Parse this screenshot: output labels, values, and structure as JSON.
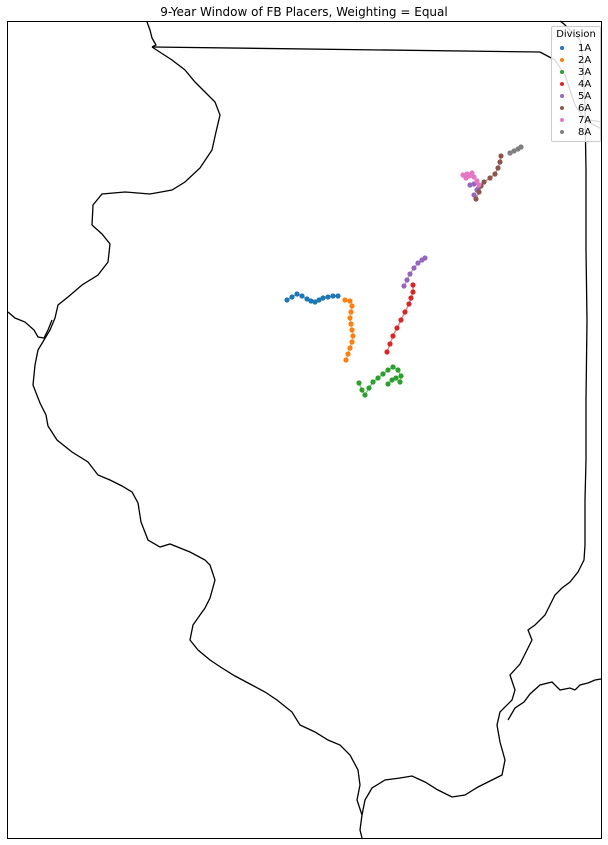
{
  "title": "9-Year Window of FB Placers, Weighting = Equal",
  "legend": {
    "title": "Division",
    "items": [
      {
        "label": "1A",
        "color": "#1f77b4"
      },
      {
        "label": "2A",
        "color": "#ff7f0e"
      },
      {
        "label": "3A",
        "color": "#2ca02c"
      },
      {
        "label": "4A",
        "color": "#d62728"
      },
      {
        "label": "5A",
        "color": "#9467bd"
      },
      {
        "label": "6A",
        "color": "#8c564b"
      },
      {
        "label": "7A",
        "color": "#e377c2"
      },
      {
        "label": "8A",
        "color": "#7f7f7f"
      }
    ]
  },
  "chart_data": {
    "type": "scatter",
    "title": "9-Year Window of FB Placers, Weighting = Equal",
    "legend_title": "Division",
    "legend_placement": "top-right",
    "grid": false,
    "series": [
      {
        "name": "1A",
        "color": "#1f77b4"
      },
      {
        "name": "2A",
        "color": "#ff7f0e"
      },
      {
        "name": "3A",
        "color": "#2ca02c"
      },
      {
        "name": "4A",
        "color": "#d62728"
      },
      {
        "name": "5A",
        "color": "#9467bd"
      },
      {
        "name": "6A",
        "color": "#8c564b"
      },
      {
        "name": "7A",
        "color": "#e377c2"
      },
      {
        "name": "8A",
        "color": "#7f7f7f"
      }
    ]
  }
}
